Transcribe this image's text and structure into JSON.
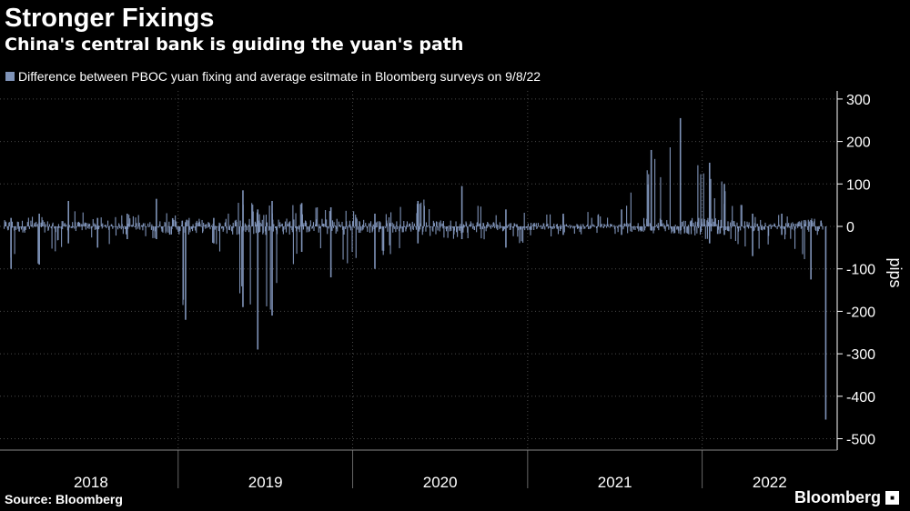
{
  "header": {
    "title": "Stronger Fixings",
    "subtitle": "China's central bank is guiding the yuan's path"
  },
  "footer": {
    "source": "Source: Bloomberg",
    "brand": "Bloomberg",
    "brand_icon": "bloomberg-logo-icon"
  },
  "colors": {
    "background": "#000000",
    "bars": "#7f93b8",
    "grid": "#4a4a4a",
    "text": "#ffffff"
  },
  "chart_data": {
    "type": "bar",
    "legend": {
      "placement": "top-left",
      "entries": [
        "Difference between PBOC yuan fixing and average esitmate in Bloomberg surveys on 9/8/22"
      ]
    },
    "xlabel": "",
    "ylabel": "pips",
    "ylim": [
      -520,
      320
    ],
    "yticks": [
      300,
      200,
      100,
      0,
      -100,
      -200,
      -300,
      -400,
      -500
    ],
    "grid": true,
    "x_axis": {
      "start": "2018-01",
      "end": "2022-09",
      "year_labels": [
        "2018",
        "2019",
        "2020",
        "2021",
        "2022"
      ]
    },
    "series": [
      {
        "name": "Difference between PBOC yuan fixing and average esitmate in Bloomberg surveys on 9/8/22",
        "values_approx_by_month": [
          {
            "month": "2018-01",
            "min": -100,
            "max": 20
          },
          {
            "month": "2018-03",
            "min": -90,
            "max": 30
          },
          {
            "month": "2018-05",
            "min": -40,
            "max": 60
          },
          {
            "month": "2018-07",
            "min": -50,
            "max": 20
          },
          {
            "month": "2018-09",
            "min": -30,
            "max": 30
          },
          {
            "month": "2018-11",
            "min": -30,
            "max": 65
          },
          {
            "month": "2019-01",
            "min": -220,
            "max": 10
          },
          {
            "month": "2019-03",
            "min": -40,
            "max": 20
          },
          {
            "month": "2019-05",
            "min": -190,
            "max": 85
          },
          {
            "month": "2019-06",
            "min": -290,
            "max": 40
          },
          {
            "month": "2019-07",
            "min": -210,
            "max": 60
          },
          {
            "month": "2019-09",
            "min": -60,
            "max": 55
          },
          {
            "month": "2019-11",
            "min": -120,
            "max": 45
          },
          {
            "month": "2020-02",
            "min": -100,
            "max": 30
          },
          {
            "month": "2020-05",
            "min": -40,
            "max": 60
          },
          {
            "month": "2020-08",
            "min": -30,
            "max": 95
          },
          {
            "month": "2020-11",
            "min": -50,
            "max": 40
          },
          {
            "month": "2021-03",
            "min": -20,
            "max": 30
          },
          {
            "month": "2021-07",
            "min": -20,
            "max": 40
          },
          {
            "month": "2021-09",
            "min": -10,
            "max": 180
          },
          {
            "month": "2021-11",
            "min": -10,
            "max": 255
          },
          {
            "month": "2022-01",
            "min": -40,
            "max": 150
          },
          {
            "month": "2022-02",
            "min": -20,
            "max": 100
          },
          {
            "month": "2022-04",
            "min": -70,
            "max": 30
          },
          {
            "month": "2022-06",
            "min": -20,
            "max": 30
          },
          {
            "month": "2022-08",
            "min": -125,
            "max": 15
          },
          {
            "month": "2022-09",
            "min": -455,
            "max": 0
          }
        ]
      }
    ]
  }
}
